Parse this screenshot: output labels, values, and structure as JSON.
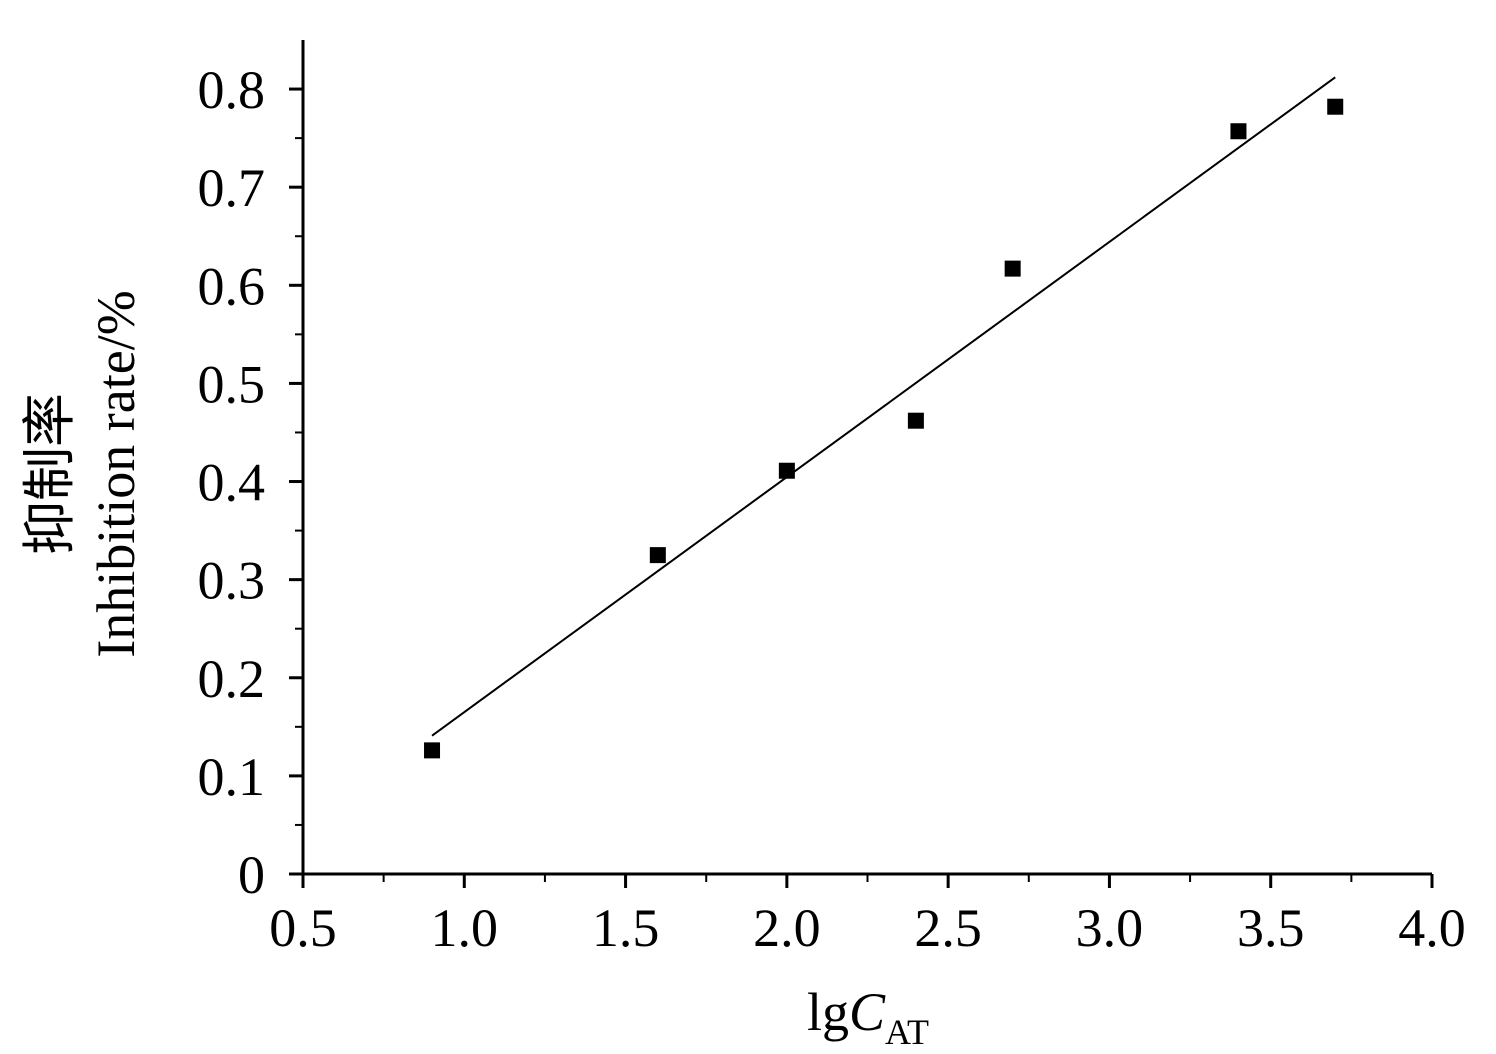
{
  "chart_data": {
    "type": "scatter",
    "title": "",
    "xlabel": {
      "prefix": "lg",
      "variable": "C",
      "subscript": "AT"
    },
    "ylabel": {
      "line1": "抑制率",
      "line2": "Inhibition rate/%"
    },
    "xlim": [
      0.5,
      4.0
    ],
    "ylim": [
      0,
      0.85
    ],
    "x_ticks": [
      "0.5",
      "1.0",
      "1.5",
      "2.0",
      "2.5",
      "3.0",
      "3.5",
      "4.0"
    ],
    "y_ticks": [
      "0",
      "0.1",
      "0.2",
      "0.3",
      "0.4",
      "0.5",
      "0.6",
      "0.7",
      "0.8"
    ],
    "grid": false,
    "legend": "none",
    "series": [
      {
        "points": [
          {
            "x": 0.9,
            "y": 0.126
          },
          {
            "x": 1.6,
            "y": 0.325
          },
          {
            "x": 2.0,
            "y": 0.411
          },
          {
            "x": 2.4,
            "y": 0.462
          },
          {
            "x": 2.7,
            "y": 0.617
          },
          {
            "x": 3.4,
            "y": 0.757
          },
          {
            "x": 3.7,
            "y": 0.782
          }
        ],
        "marker": "square",
        "color": "#000000"
      }
    ],
    "fit_line": {
      "x": [
        0.9,
        3.7
      ],
      "y": [
        0.141,
        0.812
      ],
      "color": "#000000"
    }
  }
}
